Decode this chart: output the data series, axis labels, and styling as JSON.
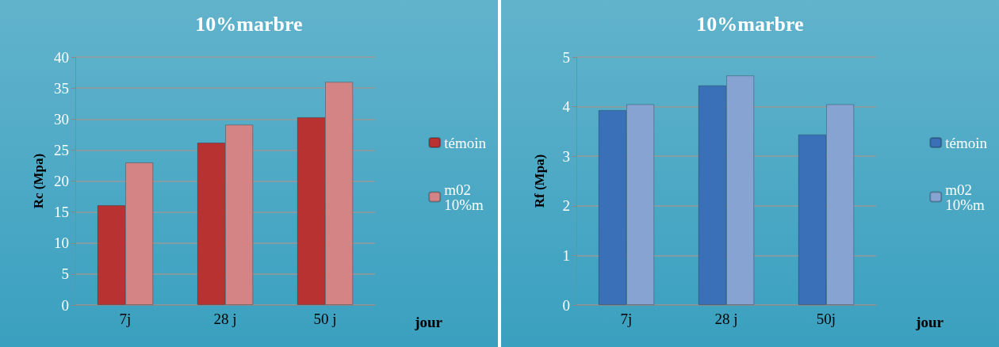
{
  "chart_data": [
    {
      "type": "bar",
      "title": "10%marbre",
      "ylabel": "Rc (Mpa)",
      "xlabel": "jour",
      "categories": [
        "7j",
        "28 j",
        "50 j"
      ],
      "series": [
        {
          "name": "témoin",
          "color": "#b83232",
          "values": [
            16.1,
            26.2,
            30.3
          ]
        },
        {
          "name": "m02 10%m",
          "color": "#d48484",
          "values": [
            23.0,
            29.1,
            36.0
          ]
        }
      ],
      "ylim": [
        0,
        40
      ],
      "yticks": [
        0,
        5,
        10,
        15,
        20,
        25,
        30,
        35,
        40
      ],
      "grid": "y",
      "legend": "right"
    },
    {
      "type": "bar",
      "title": "10%marbre",
      "ylabel": "Rf (Mpa)",
      "xlabel": "jour",
      "categories": [
        "7j",
        "28 j",
        "50j"
      ],
      "series": [
        {
          "name": "témoin",
          "color": "#3a70b8",
          "values": [
            3.93,
            4.43,
            3.44
          ]
        },
        {
          "name": "m02 10%m",
          "color": "#86a3d2",
          "values": [
            4.05,
            4.63,
            4.05
          ]
        }
      ],
      "ylim": [
        0,
        5
      ],
      "yticks": [
        0,
        1,
        2,
        3,
        4,
        5
      ],
      "grid": "y",
      "legend": "right"
    }
  ]
}
